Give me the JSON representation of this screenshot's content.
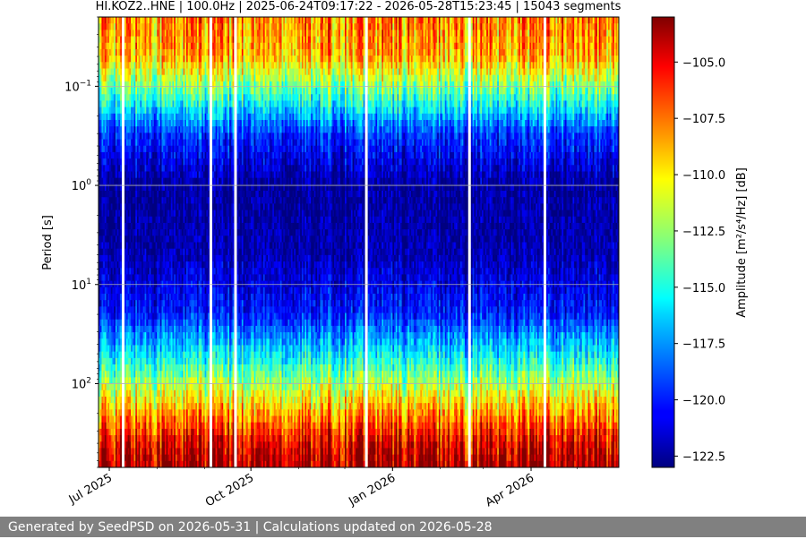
{
  "chart_data": {
    "type": "heatmap",
    "title": "HI.KOZ2..HNE | 100.0Hz | 2025-06-24T09:17:22 - 2026-05-28T15:23:45 | 15043 segments",
    "xlabel": "",
    "ylabel": "Period [s]",
    "colorbar_label": "Amplitude [m²/s⁴/Hz] [dB]",
    "x_range": [
      "2025-06-24",
      "2026-05-28"
    ],
    "x_ticks": [
      {
        "date": "2025-07-01",
        "label": "Jul 2025"
      },
      {
        "date": "2025-10-01",
        "label": "Oct 2025"
      },
      {
        "date": "2026-01-01",
        "label": "Jan 2026"
      },
      {
        "date": "2026-04-01",
        "label": "Apr 2026"
      }
    ],
    "y_scale": "log",
    "y_inverted": true,
    "y_range_s": [
      0.02,
      700
    ],
    "y_ticks": [
      {
        "value": 0.1,
        "base": "10",
        "exp": "−1"
      },
      {
        "value": 1,
        "base": "10",
        "exp": "0"
      },
      {
        "value": 10,
        "base": "10",
        "exp": "1"
      },
      {
        "value": 100,
        "base": "10",
        "exp": "2"
      }
    ],
    "colormap": "jet",
    "color_range_db": [
      -123,
      -103
    ],
    "colorbar_ticks": [
      "−105.0",
      "−107.5",
      "−110.0",
      "−112.5",
      "−115.0",
      "−117.5",
      "−120.0",
      "−122.5"
    ],
    "colorbar_tick_values": [
      -105.0,
      -107.5,
      -110.0,
      -112.5,
      -115.0,
      -117.5,
      -120.0,
      -122.5
    ],
    "data_gaps": [
      "2025-07-10",
      "2025-09-05",
      "2025-09-21",
      "2025-12-15",
      "2026-02-20",
      "2026-04-10"
    ],
    "grid": true,
    "amplitude_profile_db": [
      {
        "period_s": 0.02,
        "db": -108
      },
      {
        "period_s": 0.05,
        "db": -109
      },
      {
        "period_s": 0.1,
        "db": -113
      },
      {
        "period_s": 0.3,
        "db": -119.5
      },
      {
        "period_s": 1,
        "db": -122.5
      },
      {
        "period_s": 5,
        "db": -122
      },
      {
        "period_s": 20,
        "db": -120
      },
      {
        "period_s": 60,
        "db": -115
      },
      {
        "period_s": 150,
        "db": -110
      },
      {
        "period_s": 400,
        "db": -105
      },
      {
        "period_s": 700,
        "db": -103.5
      }
    ]
  },
  "footer": {
    "text": "Generated by SeedPSD on 2026-05-31 | Calculations updated on 2026-05-28"
  }
}
